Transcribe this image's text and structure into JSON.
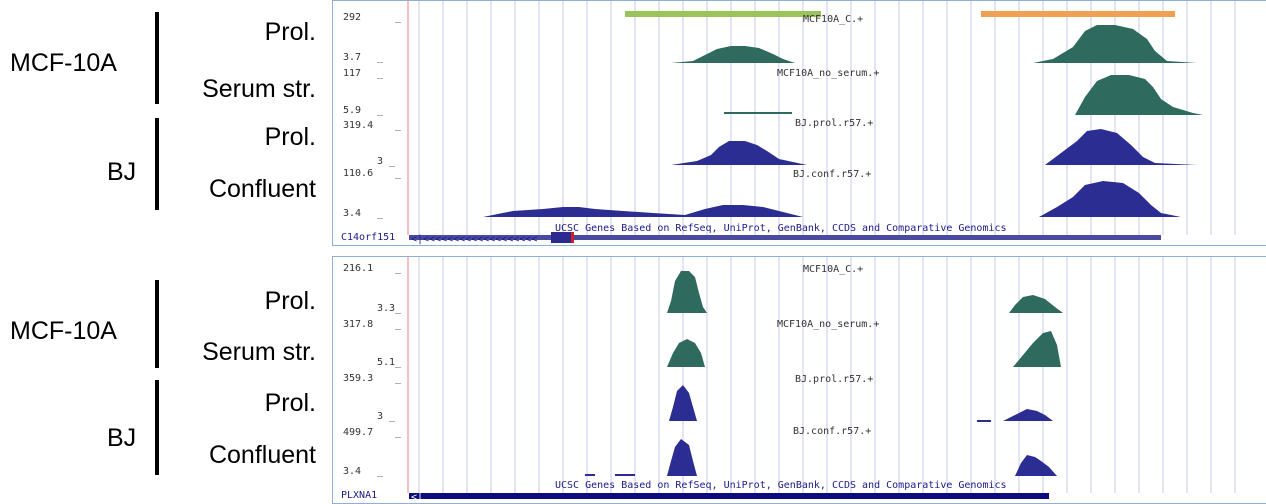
{
  "panels": [
    {
      "id": "top",
      "groups": [
        {
          "cell_line": "MCF-10A",
          "conditions": [
            "Prol.",
            "Serum str."
          ]
        },
        {
          "cell_line": "BJ",
          "conditions": [
            "Prol.",
            "Confluent"
          ]
        }
      ],
      "tracks": [
        {
          "name": "MCF10A_C.+",
          "max": "292",
          "min": "3.7",
          "color": "#2e6b5e"
        },
        {
          "name": "MCF10A_no_serum.+",
          "max": "117",
          "min": "5.9",
          "color": "#2e6b5e"
        },
        {
          "name": "BJ.prol.r57.+",
          "max": "319.4",
          "min": "3",
          "color": "#2b2d92"
        },
        {
          "name": "BJ.conf.r57.+",
          "max": "110.6",
          "min": "3.4",
          "color": "#2b2d92"
        }
      ],
      "gene_track": "UCSC Genes Based on RefSeq, UniProt, GenBank, CCDS and Comparative Genomics",
      "gene_name": "C14orf151",
      "highlights": [
        {
          "color": "#9ac35a"
        },
        {
          "color": "#f0a050"
        }
      ]
    },
    {
      "id": "bottom",
      "groups": [
        {
          "cell_line": "MCF-10A",
          "conditions": [
            "Prol.",
            "Serum str."
          ]
        },
        {
          "cell_line": "BJ",
          "conditions": [
            "Prol.",
            "Confluent"
          ]
        }
      ],
      "tracks": [
        {
          "name": "MCF10A_C.+",
          "max": "216.1",
          "min": "3.3",
          "color": "#2e6b5e"
        },
        {
          "name": "MCF10A_no_serum.+",
          "max": "317.8",
          "min": "5.1",
          "color": "#2e6b5e"
        },
        {
          "name": "BJ.prol.r57.+",
          "max": "359.3",
          "min": "3",
          "color": "#2b2d92"
        },
        {
          "name": "BJ.conf.r57.+",
          "max": "499.7",
          "min": "3.4",
          "color": "#2b2d92"
        }
      ],
      "gene_track": "UCSC Genes Based on RefSeq, UniProt, GenBank, CCDS and Comparative Genomics",
      "gene_name": "PLXNA1",
      "highlights": []
    }
  ]
}
